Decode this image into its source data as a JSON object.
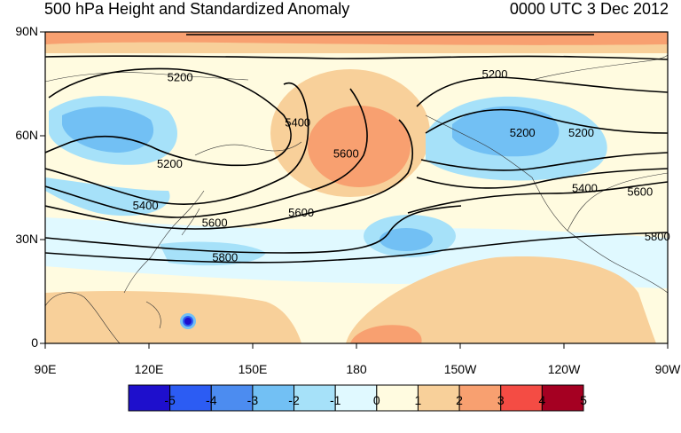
{
  "header": {
    "title": "500 hPa Height and Standardized Anomaly",
    "valid_time": "0000 UTC 3 Dec 2012"
  },
  "map": {
    "projection": "cylindrical equidistant",
    "lon_labels": [
      "90E",
      "120E",
      "150E",
      "180",
      "150W",
      "120W",
      "90W"
    ],
    "lat_labels": [
      "0",
      "30N",
      "60N",
      "90N"
    ],
    "contour_labels": [
      {
        "text": "5200",
        "lon": 129,
        "lat": 77
      },
      {
        "text": "5200",
        "lon": 126,
        "lat": 52
      },
      {
        "text": "5400",
        "lon": 119,
        "lat": 40
      },
      {
        "text": "5400",
        "lon": 163,
        "lat": 64
      },
      {
        "text": "5600",
        "lon": 177,
        "lat": 55
      },
      {
        "text": "5600",
        "lon": 139,
        "lat": 35
      },
      {
        "text": "5800",
        "lon": 142,
        "lat": 25
      },
      {
        "text": "5600",
        "lon": 164,
        "lat": 38
      },
      {
        "text": "5200",
        "lon": 220,
        "lat": 78
      },
      {
        "text": "5200",
        "lon": 228,
        "lat": 61
      },
      {
        "text": "5200",
        "lon": 245,
        "lat": 61
      },
      {
        "text": "5400",
        "lon": 246,
        "lat": 45
      },
      {
        "text": "5600",
        "lon": 262,
        "lat": 44
      },
      {
        "text": "5800",
        "lon": 267,
        "lat": 31
      }
    ]
  },
  "colorbar": {
    "tick_labels": [
      "-5",
      "-4",
      "-3",
      "-2",
      "-1",
      "0",
      "1",
      "2",
      "3",
      "4",
      "5"
    ],
    "colors": [
      "#1e0fcc",
      "#2c5cf3",
      "#4c8cf0",
      "#72c0f4",
      "#a6e1f9",
      "#e0f9ff",
      "#fffbe0",
      "#f8d09a",
      "#f8a070",
      "#f44c44",
      "#a50022"
    ]
  }
}
